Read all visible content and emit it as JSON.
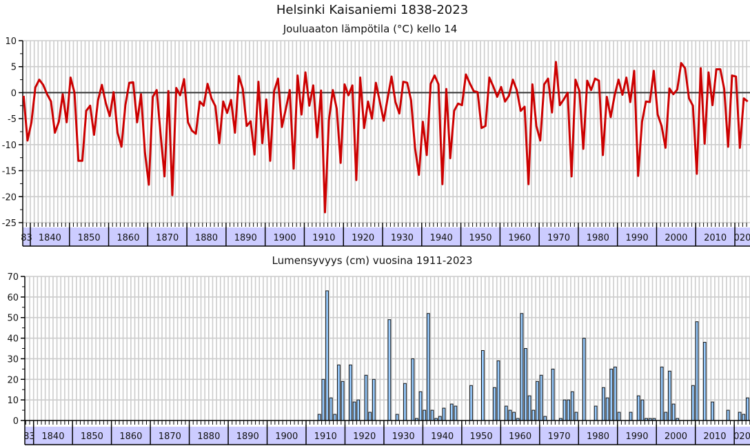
{
  "title": "Helsinki Kaisaniemi 1838-2023",
  "colors": {
    "line": "#cc0000",
    "bar": "#99ccff",
    "band": "#ccccff",
    "grid": "#cccccc"
  },
  "chart_data": [
    {
      "type": "line",
      "title": "Jouluaaton lämpötila (°C) kello 14",
      "x_start": 1838,
      "x_end": 2023,
      "ylim": [
        -25,
        10
      ],
      "yticks": [
        10,
        5,
        0,
        -5,
        -10,
        -15,
        -20,
        -25
      ],
      "xtick_labels": [
        "83",
        "1840",
        "1850",
        "1860",
        "1870",
        "1880",
        "1890",
        "1900",
        "1910",
        "1920",
        "1930",
        "1940",
        "1950",
        "1960",
        "1970",
        "1980",
        "1990",
        "2000",
        "2010",
        "020"
      ],
      "grid": true,
      "values": [
        -0.6,
        -9.2,
        -5.7,
        1.0,
        2.5,
        1.5,
        -0.3,
        -1.7,
        -7.7,
        -5.6,
        -0.3,
        -5.7,
        2.9,
        0,
        -13.1,
        -13.1,
        -3.5,
        -2.5,
        -8.1,
        -1.5,
        1.5,
        -2,
        -4.5,
        0.1,
        -7.7,
        -10.4,
        -2.4,
        1.9,
        2.0,
        -5.7,
        -0.3,
        -11.5,
        -17.7,
        -0.8,
        0.5,
        -8,
        -16.1,
        0.3,
        -19.7,
        0.9,
        -0.5,
        2.6,
        -5.7,
        -7.3,
        -7.9,
        -1.7,
        -2.5,
        1.7,
        -1.1,
        -2.6,
        -9.7,
        -1.7,
        -3.9,
        -1.4,
        -7.7,
        3.2,
        0.7,
        -6.4,
        -5.5,
        -11.9,
        2.1,
        -9.7,
        -1.3,
        -13.1,
        0.3,
        2.7,
        -6.6,
        -3.1,
        0.5,
        -14.6,
        3.3,
        -4.2,
        3.9,
        -2.5,
        1.4,
        -8.6,
        0.4,
        -23.0,
        -5.3,
        0.5,
        -3.1,
        -13.5,
        1.6,
        -0.5,
        1.4,
        -16.8,
        2.9,
        -6.8,
        -1.7,
        -5.0,
        1.9,
        -1.7,
        -5.4,
        -1.1,
        3.1,
        -1.8,
        -4.0,
        2.1,
        1.9,
        -1.5,
        -10.6,
        -15.8,
        -5.6,
        -12.0,
        1.7,
        3.3,
        1.6,
        -17.6,
        0.7,
        -12.6,
        -3.5,
        -2.1,
        -2.4,
        3.5,
        1.8,
        0.3,
        0.1,
        -6.8,
        -6.4,
        2.9,
        1.2,
        -0.8,
        1.1,
        -1.7,
        -0.6,
        2.5,
        0.5,
        -3.5,
        -2.7,
        -17.6,
        1.6,
        -6.4,
        -9.2,
        1.6,
        2.7,
        -3.8,
        5.9,
        -2.4,
        -1.3,
        0,
        -16.1,
        2.5,
        0.3,
        -10.8,
        2.3,
        0.5,
        2.7,
        2.3,
        -12.0,
        -0.8,
        -4.7,
        -0.5,
        2.5,
        -0.4,
        2.9,
        -1.8,
        4.2,
        -16.0,
        -5.6,
        -1.7,
        -1.8,
        4.2,
        -4.2,
        -6.4,
        -10.6,
        0.8,
        -0.3,
        0.6,
        5.7,
        4.7,
        -1.1,
        -2.5,
        -15.6,
        4.7,
        -9.8,
        3.9,
        -2.4,
        4.5,
        4.5,
        0.7,
        -10.4,
        3.3,
        3.1,
        -10.6,
        -1.1,
        -1.7
      ]
    },
    {
      "type": "bar",
      "title": "Lumensyvyys (cm) vuosina 1911-2023",
      "x_start": 1838,
      "x_end": 2023,
      "ylim": [
        0,
        70
      ],
      "yticks": [
        70,
        60,
        50,
        40,
        30,
        20,
        10,
        0
      ],
      "xtick_labels": [
        "83",
        "1840",
        "1850",
        "1860",
        "1870",
        "1880",
        "1890",
        "1900",
        "1910",
        "1920",
        "1930",
        "1940",
        "1950",
        "1960",
        "1970",
        "1980",
        "1990",
        "2000",
        "2010",
        "020"
      ],
      "grid": true,
      "bars": [
        [
          1913,
          3
        ],
        [
          1914,
          20
        ],
        [
          1915,
          63
        ],
        [
          1916,
          11
        ],
        [
          1917,
          3
        ],
        [
          1918,
          27
        ],
        [
          1919,
          19
        ],
        [
          1921,
          27
        ],
        [
          1922,
          9
        ],
        [
          1923,
          10
        ],
        [
          1925,
          22
        ],
        [
          1926,
          4
        ],
        [
          1927,
          20
        ],
        [
          1931,
          49
        ],
        [
          1933,
          3
        ],
        [
          1935,
          18
        ],
        [
          1937,
          30
        ],
        [
          1938,
          1
        ],
        [
          1939,
          14
        ],
        [
          1940,
          5
        ],
        [
          1941,
          52
        ],
        [
          1942,
          5
        ],
        [
          1943,
          1
        ],
        [
          1944,
          2
        ],
        [
          1945,
          6
        ],
        [
          1947,
          8
        ],
        [
          1948,
          7
        ],
        [
          1952,
          17
        ],
        [
          1955,
          34
        ],
        [
          1958,
          16
        ],
        [
          1959,
          29
        ],
        [
          1961,
          7
        ],
        [
          1962,
          5
        ],
        [
          1963,
          4
        ],
        [
          1964,
          1
        ],
        [
          1965,
          52
        ],
        [
          1966,
          35
        ],
        [
          1967,
          12
        ],
        [
          1968,
          5
        ],
        [
          1969,
          19
        ],
        [
          1970,
          22
        ],
        [
          1971,
          2
        ],
        [
          1973,
          25
        ],
        [
          1975,
          1
        ],
        [
          1976,
          10
        ],
        [
          1977,
          10
        ],
        [
          1978,
          14
        ],
        [
          1979,
          4
        ],
        [
          1981,
          40
        ],
        [
          1984,
          7
        ],
        [
          1986,
          16
        ],
        [
          1987,
          11
        ],
        [
          1988,
          25
        ],
        [
          1989,
          26
        ],
        [
          1990,
          4
        ],
        [
          1993,
          4
        ],
        [
          1995,
          12
        ],
        [
          1996,
          10
        ],
        [
          1997,
          1
        ],
        [
          1998,
          1
        ],
        [
          1999,
          1
        ],
        [
          2001,
          26
        ],
        [
          2002,
          4
        ],
        [
          2003,
          24
        ],
        [
          2004,
          8
        ],
        [
          2005,
          1
        ],
        [
          2009,
          17
        ],
        [
          2010,
          48
        ],
        [
          2012,
          38
        ],
        [
          2014,
          9
        ],
        [
          2018,
          5
        ],
        [
          2021,
          4
        ],
        [
          2022,
          3
        ],
        [
          2023,
          11
        ]
      ]
    }
  ]
}
